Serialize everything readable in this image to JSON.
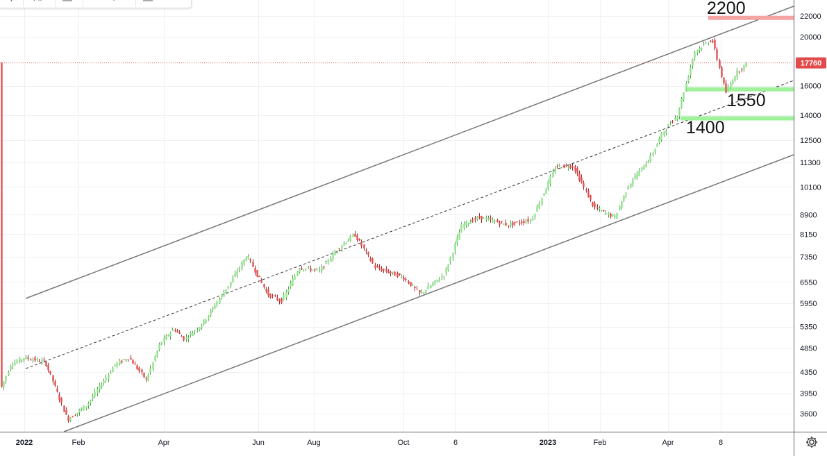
{
  "colors": {
    "up": "#90e38b",
    "down": "#e05151",
    "channel": "#777777",
    "midline": "#333333",
    "grid": "#eef0f3",
    "price_line": "#e34a4a",
    "resistance_zone": "#f5a3a3",
    "support_zone": "#9ef29a"
  },
  "chart_data": {
    "type": "candlestick",
    "y_scale": "log",
    "ylim": [
      3400,
      23500
    ],
    "x_labels": [
      "2022",
      "Feb",
      "Apr",
      "Jun",
      "Aug",
      "Oct",
      "6",
      "2023",
      "Feb",
      "Apr",
      "8"
    ],
    "y_ticks": [
      "22000",
      "20000",
      "17760",
      "16000",
      "14000",
      "12500",
      "11300",
      "10100",
      "8900",
      "8150",
      "7350",
      "6550",
      "5950",
      "5350",
      "4850",
      "4350",
      "3950",
      "3600"
    ],
    "y_tick_values": [
      22000,
      20000,
      16000,
      14000,
      12500,
      11300,
      10100,
      8900,
      8150,
      7350,
      6550,
      5950,
      5350,
      4850,
      4350,
      3950,
      3600
    ],
    "last_price": 17760,
    "last_price_label": "17760",
    "price_points": [
      {
        "t": 0,
        "v": 4000
      },
      {
        "t": 15,
        "v": 4500
      },
      {
        "t": 35,
        "v": 4650
      },
      {
        "t": 65,
        "v": 4550
      },
      {
        "t": 97,
        "v": 3500
      },
      {
        "t": 125,
        "v": 3750
      },
      {
        "t": 165,
        "v": 4500
      },
      {
        "t": 185,
        "v": 4650
      },
      {
        "t": 210,
        "v": 4200
      },
      {
        "t": 230,
        "v": 4950
      },
      {
        "t": 250,
        "v": 5300
      },
      {
        "t": 265,
        "v": 5050
      },
      {
        "t": 290,
        "v": 5400
      },
      {
        "t": 330,
        "v": 6500
      },
      {
        "t": 355,
        "v": 7400
      },
      {
        "t": 385,
        "v": 6200
      },
      {
        "t": 405,
        "v": 6000
      },
      {
        "t": 430,
        "v": 7000
      },
      {
        "t": 460,
        "v": 6900
      },
      {
        "t": 485,
        "v": 7600
      },
      {
        "t": 510,
        "v": 8150
      },
      {
        "t": 540,
        "v": 7000
      },
      {
        "t": 580,
        "v": 6700
      },
      {
        "t": 605,
        "v": 6200
      },
      {
        "t": 640,
        "v": 6800
      },
      {
        "t": 665,
        "v": 8500
      },
      {
        "t": 690,
        "v": 8800
      },
      {
        "t": 730,
        "v": 8500
      },
      {
        "t": 765,
        "v": 8700
      },
      {
        "t": 800,
        "v": 11100
      },
      {
        "t": 825,
        "v": 11100
      },
      {
        "t": 855,
        "v": 9200
      },
      {
        "t": 885,
        "v": 8800
      },
      {
        "t": 905,
        "v": 10200
      },
      {
        "t": 935,
        "v": 11500
      },
      {
        "t": 955,
        "v": 13000
      },
      {
        "t": 975,
        "v": 14000
      },
      {
        "t": 1000,
        "v": 18700
      },
      {
        "t": 1025,
        "v": 19800
      },
      {
        "t": 1045,
        "v": 15500
      },
      {
        "t": 1060,
        "v": 17000
      },
      {
        "t": 1076,
        "v": 17760
      }
    ],
    "annotations": [
      {
        "label": "2200",
        "value": 21800
      },
      {
        "label": "1550",
        "value": 15750
      },
      {
        "label": "1400",
        "value": 13800
      }
    ]
  }
}
